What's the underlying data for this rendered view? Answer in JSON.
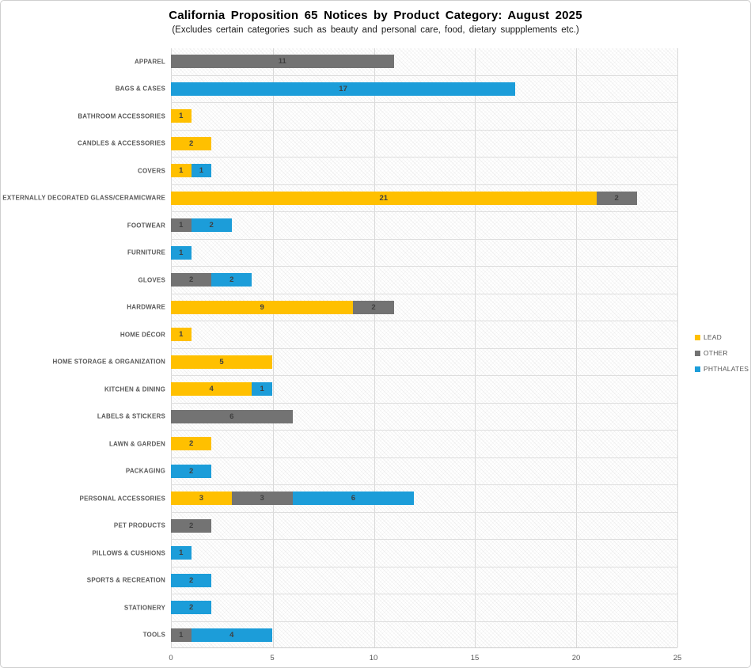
{
  "title": "California Proposition 65 Notices by Product Category: August 2025",
  "subtitle": "(Excludes certain categories such as beauty and personal care, food, dietary suppplements etc.)",
  "chart_data": {
    "type": "bar",
    "orientation": "horizontal",
    "stacked": true,
    "title": "California Proposition 65 Notices by Product Category: August 2025",
    "subtitle": "(Excludes certain categories such as beauty and personal care, food, dietary suppplements etc.)",
    "categories": [
      "APPAREL",
      "BAGS & CASES",
      "BATHROOM ACCESSORIES",
      "CANDLES & ACCESSORIES",
      "COVERS",
      "EXTERNALLY DECORATED GLASS/CERAMICWARE",
      "FOOTWEAR",
      "FURNITURE",
      "GLOVES",
      "HARDWARE",
      "HOME DÉCOR",
      "HOME STORAGE & ORGANIZATION",
      "KITCHEN & DINING",
      "LABELS & STICKERS",
      "LAWN & GARDEN",
      "PACKAGING",
      "PERSONAL ACCESSORIES",
      "PET PRODUCTS",
      "PILLOWS & CUSHIONS",
      "SPORTS & RECREATION",
      "STATIONERY",
      "TOOLS"
    ],
    "series": [
      {
        "name": "LEAD",
        "color": "#FFC000",
        "values": [
          0,
          0,
          1,
          2,
          1,
          21,
          0,
          0,
          0,
          9,
          1,
          5,
          4,
          0,
          2,
          0,
          3,
          0,
          0,
          0,
          0,
          0
        ]
      },
      {
        "name": "OTHER",
        "color": "#737373",
        "values": [
          11,
          0,
          0,
          0,
          0,
          2,
          1,
          0,
          2,
          2,
          0,
          0,
          0,
          6,
          0,
          0,
          3,
          2,
          0,
          0,
          0,
          1
        ]
      },
      {
        "name": "PHTHALATES",
        "color": "#1C9DD9",
        "values": [
          0,
          17,
          0,
          0,
          1,
          0,
          2,
          1,
          2,
          0,
          0,
          0,
          1,
          0,
          0,
          2,
          6,
          0,
          1,
          2,
          2,
          4
        ]
      }
    ],
    "xlim": [
      0,
      25
    ],
    "xticks": [
      0,
      5,
      10,
      15,
      20,
      25
    ],
    "grid": "vertical",
    "data_labels": true,
    "legend_position": "right"
  },
  "colors": {
    "lead": "#FFC000",
    "other": "#737373",
    "phthalates": "#1C9DD9",
    "gridline": "#d9d9d9",
    "category_label": "#595959",
    "data_label": "#3f3f3f"
  }
}
